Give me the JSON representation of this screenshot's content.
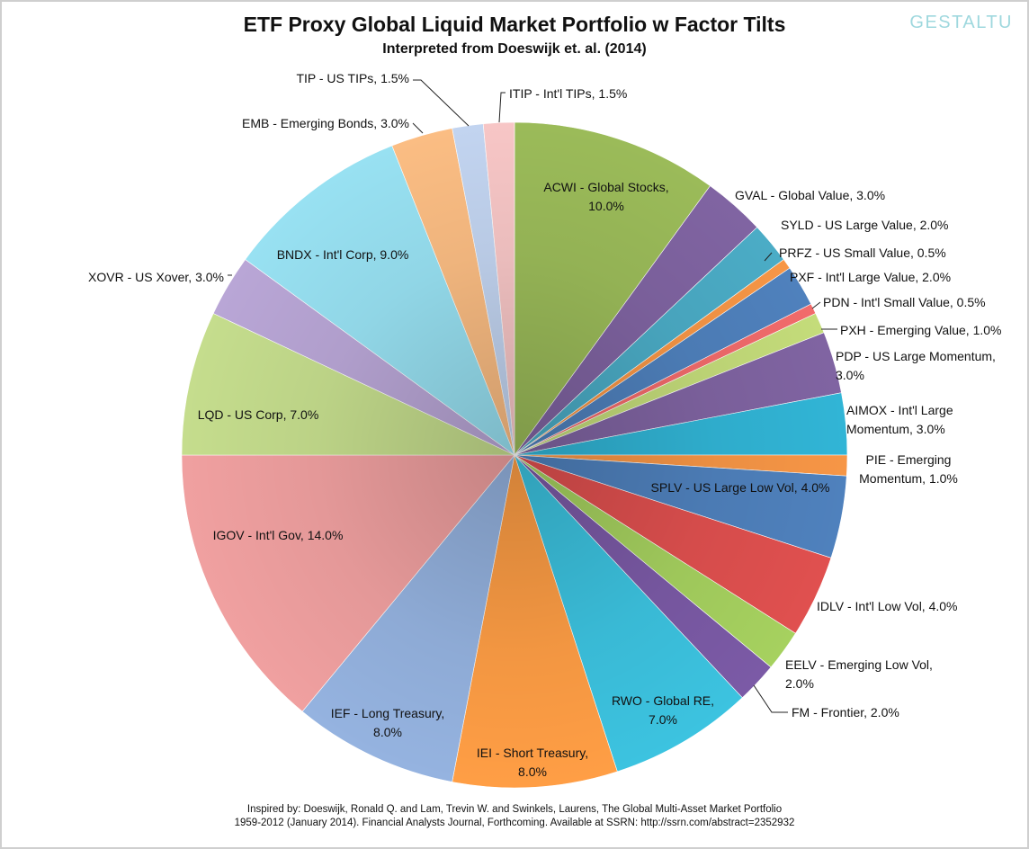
{
  "watermark": "GESTALTU",
  "chart_data": {
    "type": "pie",
    "title": "ETF Proxy Global Liquid Market Portfolio w Factor Tilts",
    "subtitle": "Interpreted from Doeswijk et. al. (2014)",
    "slices": [
      {
        "ticker": "ACWI",
        "name": "Global Stocks",
        "value": 10.0,
        "color": "#9bbb59",
        "label": [
          "ACWI - Global Stocks,",
          "10.0%"
        ]
      },
      {
        "ticker": "GVAL",
        "name": "Global Value",
        "value": 3.0,
        "color": "#8064a2",
        "label": [
          "GVAL - Global Value, 3.0%"
        ]
      },
      {
        "ticker": "SYLD",
        "name": "US Large Value",
        "value": 2.0,
        "color": "#4bacc6",
        "label": [
          "SYLD - US Large Value, 2.0%"
        ]
      },
      {
        "ticker": "PRFZ",
        "name": "US Small Value",
        "value": 0.5,
        "color": "#f79646",
        "label": [
          "PRFZ - US Small Value, 0.5%"
        ]
      },
      {
        "ticker": "PXF",
        "name": "Int'l Large Value",
        "value": 2.0,
        "color": "#4f81bd",
        "label": [
          "PXF - Int'l Large Value, 2.0%"
        ]
      },
      {
        "ticker": "PDN",
        "name": "Int'l Small Value",
        "value": 0.5,
        "color": "#f26b6b",
        "label": [
          "PDN - Int'l Small Value, 0.5%"
        ]
      },
      {
        "ticker": "PXH",
        "name": "Emerging Value",
        "value": 1.0,
        "color": "#c4dc7a",
        "label": [
          "PXH - Emerging Value, 1.0%"
        ]
      },
      {
        "ticker": "PDP",
        "name": "US Large Momentum",
        "value": 3.0,
        "color": "#8064a2",
        "label": [
          "PDP - US Large Momentum,",
          "3.0%"
        ]
      },
      {
        "ticker": "AIMOX",
        "name": "Int'l Large Momentum",
        "value": 3.0,
        "color": "#31b5d6",
        "label": [
          "AIMOX - Int'l Large",
          "Momentum, 3.0%"
        ]
      },
      {
        "ticker": "PIE",
        "name": "Emerging Momentum",
        "value": 1.0,
        "color": "#f79646",
        "label": [
          "PIE - Emerging",
          "Momentum, 1.0%"
        ]
      },
      {
        "ticker": "SPLV",
        "name": "US Large Low Vol",
        "value": 4.0,
        "color": "#4f81bd",
        "label": [
          "SPLV - US Large Low Vol, 4.0%"
        ]
      },
      {
        "ticker": "IDLV",
        "name": "Int'l Low Vol",
        "value": 4.0,
        "color": "#e0504f",
        "label": [
          "IDLV - Int'l Low Vol, 4.0%"
        ]
      },
      {
        "ticker": "EELV",
        "name": "Emerging Low Vol",
        "value": 2.0,
        "color": "#a6d15f",
        "label": [
          "EELV - Emerging Low Vol,",
          "2.0%"
        ]
      },
      {
        "ticker": "FM",
        "name": "Frontier",
        "value": 2.0,
        "color": "#7b5aa6",
        "label": [
          "FM - Frontier, 2.0%"
        ]
      },
      {
        "ticker": "RWO",
        "name": "Global RE",
        "value": 7.0,
        "color": "#3cc3e0",
        "label": [
          "RWO - Global RE,",
          "7.0%"
        ]
      },
      {
        "ticker": "IEI",
        "name": "Short Treasury",
        "value": 8.0,
        "color": "#ff9e45",
        "label": [
          "IEI - Short Treasury,",
          "8.0%"
        ]
      },
      {
        "ticker": "IEF",
        "name": "Long Treasury",
        "value": 8.0,
        "color": "#95b3e0",
        "label": [
          "IEF - Long Treasury,",
          "8.0%"
        ]
      },
      {
        "ticker": "IGOV",
        "name": "Int'l Gov",
        "value": 14.0,
        "color": "#f0a0a0",
        "label": [
          "IGOV - Int'l Gov, 14.0%"
        ]
      },
      {
        "ticker": "LQD",
        "name": "US Corp",
        "value": 7.0,
        "color": "#c5dd8d",
        "label": [
          "LQD - US Corp, 7.0%"
        ]
      },
      {
        "ticker": "XOVR",
        "name": "US Xover",
        "value": 3.0,
        "color": "#b9a6d6",
        "label": [
          "XOVR - US Xover, 3.0%"
        ]
      },
      {
        "ticker": "BNDX",
        "name": "Int'l Corp",
        "value": 9.0,
        "color": "#98e1f2",
        "label": [
          "BNDX - Int'l Corp, 9.0%"
        ]
      },
      {
        "ticker": "EMB",
        "name": "Emerging Bonds",
        "value": 3.0,
        "color": "#fbbd83",
        "label": [
          "EMB - Emerging Bonds, 3.0%"
        ]
      },
      {
        "ticker": "TIP",
        "name": "US TIPs",
        "value": 1.5,
        "color": "#c2d4f0",
        "label": [
          "TIP - US TIPs, 1.5%"
        ]
      },
      {
        "ticker": "ITIP",
        "name": "Int'l TIPs",
        "value": 1.5,
        "color": "#f7c6c6",
        "label": [
          "ITIP - Int'l TIPs, 1.5%"
        ]
      }
    ]
  },
  "footer": {
    "line1": "Inspired by: Doeswijk, Ronald Q. and Lam, Trevin W. and Swinkels, Laurens, The Global Multi-Asset Market Portfolio",
    "line2": "1959-2012 (January 2014). Financial Analysts Journal, Forthcoming. Available at SSRN: http://ssrn.com/abstract=2352932"
  }
}
